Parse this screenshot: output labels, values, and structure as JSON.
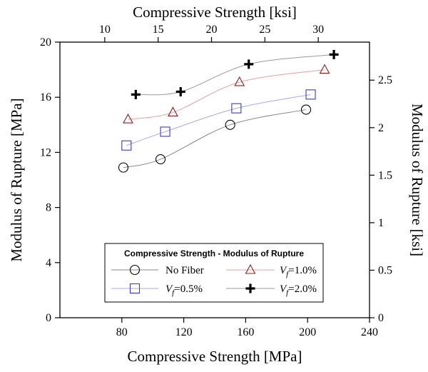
{
  "chart_data": {
    "type": "line",
    "xlabel": "Compressive Strength [MPa]",
    "ylabel": "Modulus of Rupture [MPa]",
    "x2label": "Compressive Strength [ksi]",
    "y2label": "Modulus of Rupture [ksi]",
    "xlim": [
      40,
      240
    ],
    "ylim": [
      0,
      20
    ],
    "x2lim": [
      5.8,
      34.8
    ],
    "y2lim": [
      0,
      2.9
    ],
    "xticks": [
      80,
      120,
      160,
      200,
      240
    ],
    "yticks": [
      0,
      4,
      8,
      12,
      16,
      20
    ],
    "x2ticks": [
      10,
      15,
      20,
      25,
      30
    ],
    "y2ticks": [
      0,
      0.5,
      1,
      1.5,
      2,
      2.5
    ],
    "xticklabels": [
      "80",
      "120",
      "160",
      "200",
      "240"
    ],
    "yticklabels": [
      "0",
      "4",
      "8",
      "12",
      "16",
      "20"
    ],
    "x2ticklabels": [
      "10",
      "15",
      "20",
      "25",
      "30"
    ],
    "y2ticklabels": [
      "0",
      "0.5",
      "1",
      "1.5",
      "2",
      "2.5"
    ],
    "legend": {
      "title": "Compressive Strength - Modulus of Rupture",
      "position": "bottom-center"
    },
    "series": [
      {
        "name": "No Fiber",
        "label_main": "No Fiber",
        "label_sub": "",
        "label_rest": "",
        "marker": "circle",
        "color": "#000000",
        "line_color": "#8a8a8a",
        "x": [
          81,
          105,
          150,
          199
        ],
        "y": [
          10.9,
          11.5,
          14.0,
          15.1
        ]
      },
      {
        "name": "Vf=1.0%",
        "label_main": "V",
        "label_sub": "f",
        "label_rest": "=1.0%",
        "marker": "triangle",
        "color": "#8b2020",
        "line_color": "#e8a0a0",
        "x": [
          84,
          113,
          156,
          211
        ],
        "y": [
          14.4,
          14.9,
          17.1,
          18.0
        ]
      },
      {
        "name": "Vf=0.5%",
        "label_main": "V",
        "label_sub": "f",
        "label_rest": "=0.5%",
        "marker": "square",
        "color": "#3b3bc4",
        "line_color": "#a8a8e8",
        "x": [
          83,
          108,
          154,
          202
        ],
        "y": [
          12.5,
          13.5,
          15.2,
          16.2
        ]
      },
      {
        "name": "Vf=2.0%",
        "label_main": "V",
        "label_sub": "f",
        "label_rest": "=2.0%",
        "marker": "plus",
        "color": "#000000",
        "line_color": "#9a9a9a",
        "x": [
          89,
          118,
          162,
          217
        ],
        "y": [
          16.2,
          16.4,
          18.4,
          19.1
        ]
      }
    ]
  }
}
